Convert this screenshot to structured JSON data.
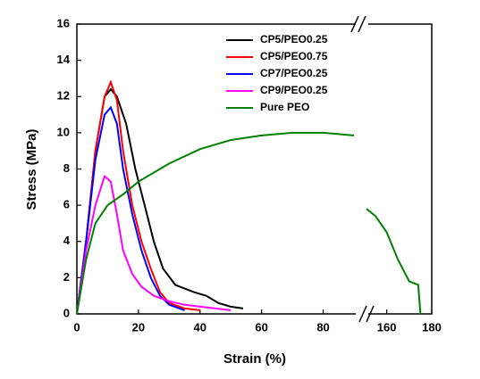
{
  "chart_data": {
    "type": "line",
    "x_label": "Strain (%)",
    "y_label": "Stress (MPa)",
    "xlim": [
      0,
      180
    ],
    "xbreak": [
      90,
      151
    ],
    "xticks": [
      0,
      20,
      40,
      60,
      80,
      160,
      180
    ],
    "ylim": [
      0,
      16
    ],
    "yticks": [
      0,
      2,
      4,
      6,
      8,
      10,
      12,
      14,
      16
    ],
    "series": [
      {
        "name": "CP5/PEO0.25",
        "color": "#000000",
        "x": [
          0,
          3,
          6,
          9,
          11,
          13,
          16,
          19,
          22,
          25,
          28,
          32,
          38,
          42,
          46,
          50,
          54
        ],
        "values": [
          0,
          4,
          9,
          12,
          12.4,
          12,
          10.5,
          8,
          6,
          4,
          2.5,
          1.6,
          1.2,
          1,
          0.6,
          0.4,
          0.3
        ]
      },
      {
        "name": "CP5/PEO0.75",
        "color": "#ff0000",
        "x": [
          0,
          3,
          6,
          9,
          11,
          13,
          15,
          18,
          21,
          24,
          27,
          30,
          35,
          40
        ],
        "values": [
          0,
          4,
          9,
          12,
          12.8,
          11.8,
          9,
          6,
          4,
          2.5,
          1.2,
          0.6,
          0.3,
          0.2
        ]
      },
      {
        "name": "CP7/PEO0.25",
        "color": "#0000ff",
        "x": [
          0,
          3,
          6,
          9,
          11,
          13,
          15,
          18,
          21,
          24,
          27,
          30,
          35
        ],
        "values": [
          0,
          4,
          8.5,
          11,
          11.4,
          10.5,
          8,
          5.5,
          3.5,
          2,
          1,
          0.5,
          0.2
        ]
      },
      {
        "name": "CP9/PEO0.25",
        "color": "#ff00ff",
        "x": [
          0,
          3,
          6,
          9,
          11,
          13,
          15,
          18,
          21,
          25,
          30,
          35,
          40,
          45,
          50
        ],
        "values": [
          0,
          3.5,
          6,
          7.6,
          7.3,
          5.5,
          3.5,
          2.2,
          1.5,
          1,
          0.7,
          0.5,
          0.4,
          0.3,
          0.2
        ]
      },
      {
        "name": "Pure PEO",
        "color": "#008000",
        "x": [
          0,
          3,
          6,
          10,
          15,
          20,
          30,
          40,
          50,
          60,
          70,
          80,
          90,
          null,
          151,
          155,
          160,
          165,
          170,
          174,
          175
        ],
        "values": [
          0,
          3,
          5,
          6,
          6.6,
          7.3,
          8.3,
          9.1,
          9.6,
          9.85,
          10,
          10,
          9.85,
          null,
          5.8,
          5.4,
          4.5,
          3,
          1.8,
          1.6,
          0
        ]
      }
    ]
  }
}
